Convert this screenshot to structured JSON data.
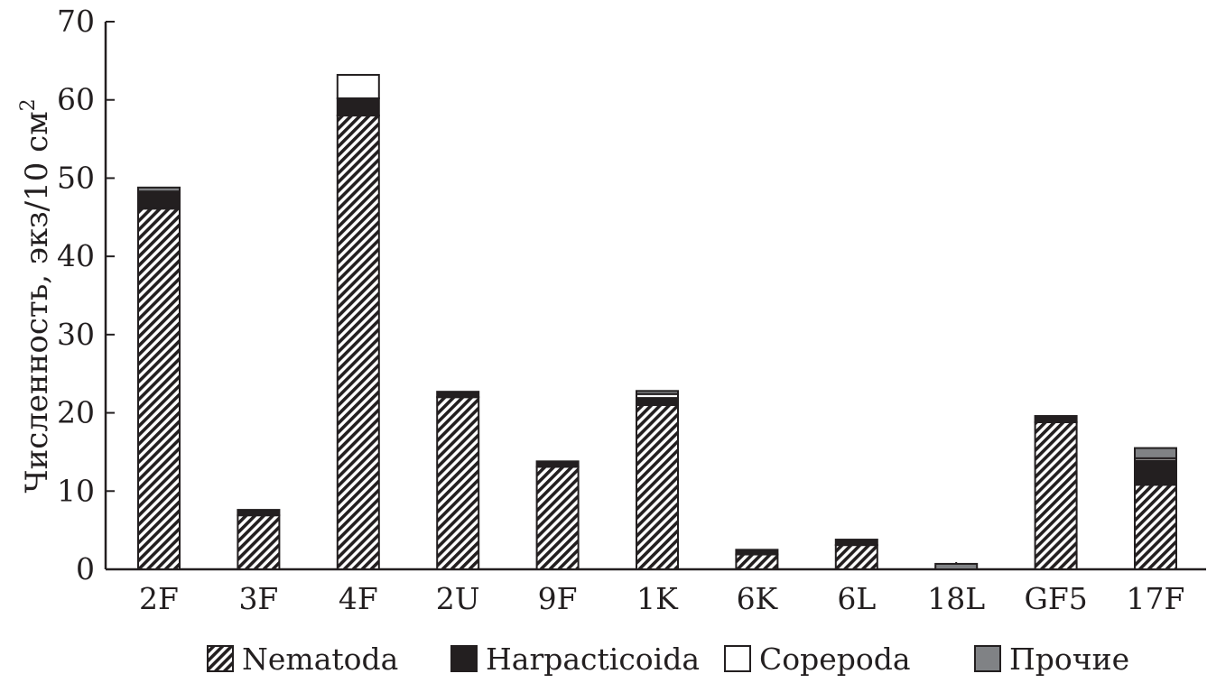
{
  "chart_data": {
    "type": "bar",
    "stacked": true,
    "title": "",
    "xlabel": "",
    "ylabel": "Численность, экз/10 см",
    "ylabel_sup": "2",
    "ylim": [
      0,
      70
    ],
    "yticks": [
      0,
      10,
      20,
      30,
      40,
      50,
      60,
      70
    ],
    "grid": false,
    "legend_position": "bottom",
    "categories": [
      "2F",
      "3F",
      "4F",
      "2U",
      "9F",
      "1K",
      "6K",
      "6L",
      "18L",
      "GF5",
      "17F"
    ],
    "series": [
      {
        "name": "Nematoda",
        "pattern": "diagonal-hatch",
        "color": "#231f20",
        "values": [
          46.1,
          6.9,
          58.0,
          22.0,
          13.1,
          21.0,
          1.9,
          3.1,
          0,
          18.8,
          10.8
        ]
      },
      {
        "name": "Harpacticoida",
        "color": "#231f20",
        "values": [
          2.2,
          0.7,
          2.2,
          0.7,
          0.7,
          0.9,
          0.6,
          0.7,
          0,
          0.8,
          3.1
        ]
      },
      {
        "name": "Copepoda",
        "color": "#ffffff",
        "values": [
          0,
          0,
          3.0,
          0,
          0,
          0.5,
          0,
          0,
          0,
          0,
          0.3
        ]
      },
      {
        "name": "Прочие",
        "color": "#808285",
        "values": [
          0.5,
          0,
          0,
          0,
          0,
          0.4,
          0,
          0,
          0.7,
          0,
          1.3
        ]
      }
    ]
  }
}
